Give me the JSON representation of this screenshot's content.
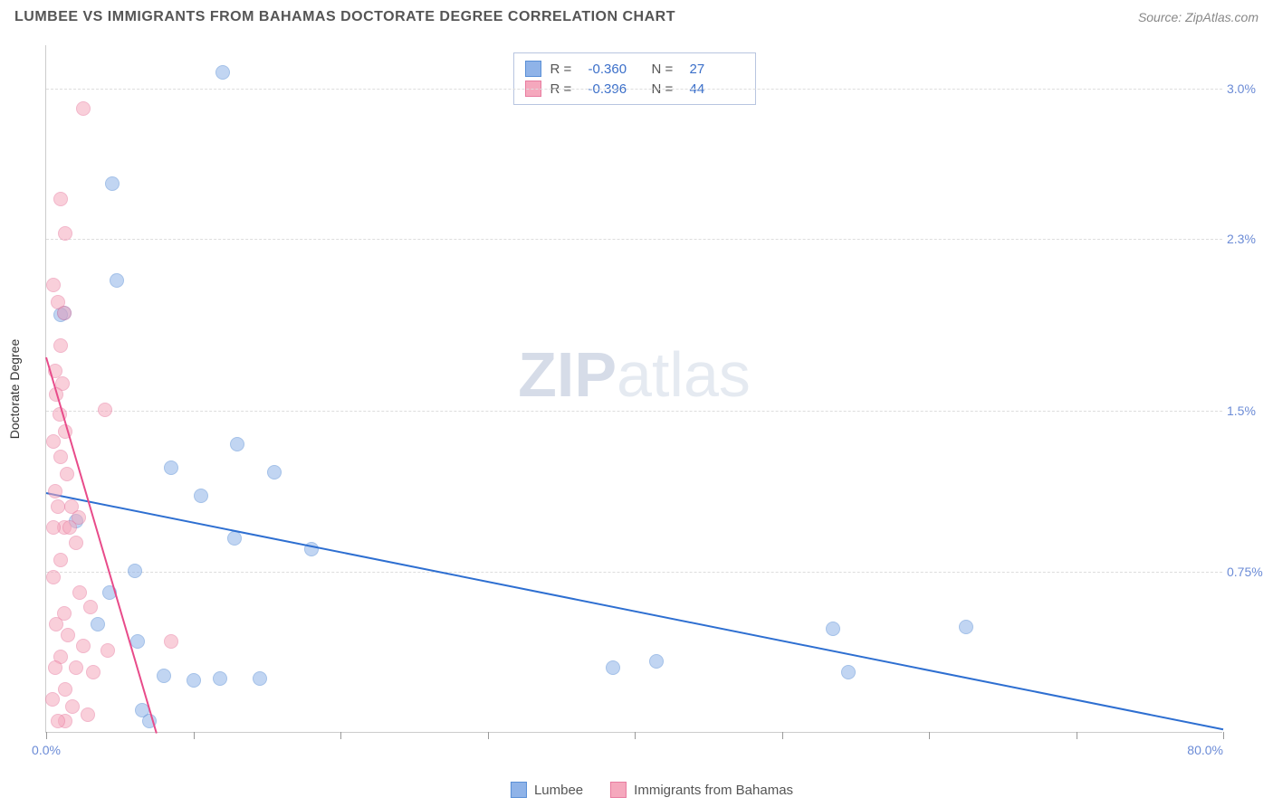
{
  "title": "LUMBEE VS IMMIGRANTS FROM BAHAMAS DOCTORATE DEGREE CORRELATION CHART",
  "source": "Source: ZipAtlas.com",
  "watermark_bold": "ZIP",
  "watermark_light": "atlas",
  "chart": {
    "type": "scatter",
    "y_label": "Doctorate Degree",
    "xlim": [
      0,
      80
    ],
    "ylim": [
      0,
      3.2
    ],
    "x_ticks": [
      0,
      10,
      20,
      30,
      40,
      50,
      60,
      70,
      80
    ],
    "x_tick_labels": {
      "0": "0.0%",
      "80": "80.0%"
    },
    "y_gridlines": [
      0.75,
      1.5,
      2.3,
      3.0
    ],
    "y_tick_labels": [
      "0.75%",
      "1.5%",
      "2.3%",
      "3.0%"
    ],
    "background_color": "#ffffff",
    "grid_color": "#dddddd",
    "axis_color": "#cccccc",
    "tick_label_color": "#6b8bd6",
    "marker_radius": 8,
    "marker_opacity": 0.55,
    "series": [
      {
        "name": "Lumbee",
        "color": "#8fb3e8",
        "stroke": "#5a8fd6",
        "trend_color": "#2e6fd1",
        "R": "-0.360",
        "N": "27",
        "trend_start": {
          "x": 0,
          "y": 1.12
        },
        "trend_end": {
          "x": 80,
          "y": 0.02
        },
        "points": [
          {
            "x": 4.5,
            "y": 2.55
          },
          {
            "x": 12.0,
            "y": 3.07
          },
          {
            "x": 4.8,
            "y": 2.1
          },
          {
            "x": 1.2,
            "y": 1.95
          },
          {
            "x": 1.0,
            "y": 1.94
          },
          {
            "x": 13.0,
            "y": 1.34
          },
          {
            "x": 8.5,
            "y": 1.23
          },
          {
            "x": 15.5,
            "y": 1.21
          },
          {
            "x": 10.5,
            "y": 1.1
          },
          {
            "x": 2.0,
            "y": 0.98
          },
          {
            "x": 12.8,
            "y": 0.9
          },
          {
            "x": 18.0,
            "y": 0.85
          },
          {
            "x": 6.0,
            "y": 0.75
          },
          {
            "x": 4.3,
            "y": 0.65
          },
          {
            "x": 3.5,
            "y": 0.5
          },
          {
            "x": 6.2,
            "y": 0.42
          },
          {
            "x": 38.5,
            "y": 0.3
          },
          {
            "x": 41.5,
            "y": 0.33
          },
          {
            "x": 53.5,
            "y": 0.48
          },
          {
            "x": 54.5,
            "y": 0.28
          },
          {
            "x": 62.5,
            "y": 0.49
          },
          {
            "x": 8.0,
            "y": 0.26
          },
          {
            "x": 10.0,
            "y": 0.24
          },
          {
            "x": 14.5,
            "y": 0.25
          },
          {
            "x": 6.5,
            "y": 0.1
          },
          {
            "x": 11.8,
            "y": 0.25
          },
          {
            "x": 7.0,
            "y": 0.05
          }
        ]
      },
      {
        "name": "Immigrants from Bahamas",
        "color": "#f5a8bd",
        "stroke": "#e87ca0",
        "trend_color": "#e84b8a",
        "R": "-0.396",
        "N": "44",
        "trend_start": {
          "x": 0,
          "y": 1.75
        },
        "trend_end": {
          "x": 7.5,
          "y": 0.0
        },
        "points": [
          {
            "x": 2.5,
            "y": 2.9
          },
          {
            "x": 1.0,
            "y": 2.48
          },
          {
            "x": 1.3,
            "y": 2.32
          },
          {
            "x": 0.5,
            "y": 2.08
          },
          {
            "x": 0.8,
            "y": 2.0
          },
          {
            "x": 1.2,
            "y": 1.95
          },
          {
            "x": 1.0,
            "y": 1.8
          },
          {
            "x": 0.6,
            "y": 1.68
          },
          {
            "x": 1.1,
            "y": 1.62
          },
          {
            "x": 0.7,
            "y": 1.57
          },
          {
            "x": 4.0,
            "y": 1.5
          },
          {
            "x": 0.9,
            "y": 1.48
          },
          {
            "x": 1.3,
            "y": 1.4
          },
          {
            "x": 0.5,
            "y": 1.35
          },
          {
            "x": 1.0,
            "y": 1.28
          },
          {
            "x": 1.4,
            "y": 1.2
          },
          {
            "x": 0.6,
            "y": 1.12
          },
          {
            "x": 1.7,
            "y": 1.05
          },
          {
            "x": 0.8,
            "y": 1.05
          },
          {
            "x": 2.2,
            "y": 1.0
          },
          {
            "x": 1.2,
            "y": 0.95
          },
          {
            "x": 0.5,
            "y": 0.95
          },
          {
            "x": 1.6,
            "y": 0.95
          },
          {
            "x": 2.0,
            "y": 0.88
          },
          {
            "x": 1.0,
            "y": 0.8
          },
          {
            "x": 0.5,
            "y": 0.72
          },
          {
            "x": 2.3,
            "y": 0.65
          },
          {
            "x": 1.2,
            "y": 0.55
          },
          {
            "x": 3.0,
            "y": 0.58
          },
          {
            "x": 0.7,
            "y": 0.5
          },
          {
            "x": 1.5,
            "y": 0.45
          },
          {
            "x": 2.5,
            "y": 0.4
          },
          {
            "x": 4.2,
            "y": 0.38
          },
          {
            "x": 1.0,
            "y": 0.35
          },
          {
            "x": 8.5,
            "y": 0.42
          },
          {
            "x": 0.6,
            "y": 0.3
          },
          {
            "x": 2.0,
            "y": 0.3
          },
          {
            "x": 1.3,
            "y": 0.2
          },
          {
            "x": 3.2,
            "y": 0.28
          },
          {
            "x": 0.4,
            "y": 0.15
          },
          {
            "x": 1.8,
            "y": 0.12
          },
          {
            "x": 2.8,
            "y": 0.08
          },
          {
            "x": 1.3,
            "y": 0.05
          },
          {
            "x": 0.8,
            "y": 0.05
          }
        ]
      }
    ]
  },
  "legend_series_label_1": "Lumbee",
  "legend_series_label_2": "Immigrants from Bahamas",
  "stat_labels": {
    "R": "R =",
    "N": "N ="
  }
}
